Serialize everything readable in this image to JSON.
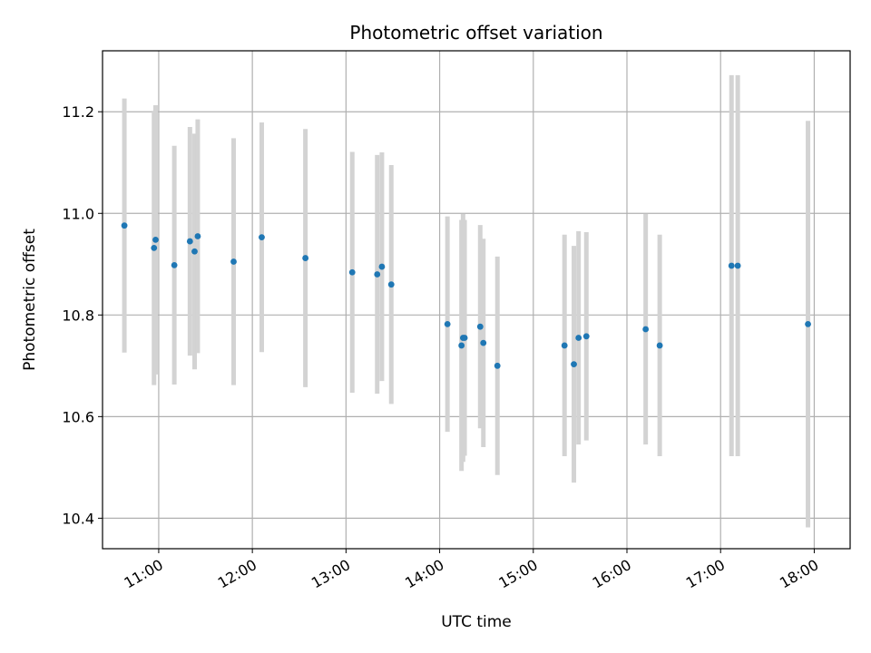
{
  "chart_data": {
    "type": "scatter",
    "title": "Photometric offset variation",
    "xlabel": "UTC time",
    "ylabel": "Photometric offset",
    "grid": true,
    "x_tick_labels": [
      "11:00",
      "12:00",
      "13:00",
      "14:00",
      "15:00",
      "16:00",
      "17:00",
      "18:00"
    ],
    "y_tick_labels": [
      "10.4",
      "10.6",
      "10.8",
      "11.0",
      "11.2"
    ],
    "y_ticks": [
      10.4,
      10.6,
      10.8,
      11.0,
      11.2
    ],
    "xlim": [
      "10:24",
      "18:23"
    ],
    "ylim": [
      10.34,
      11.32
    ],
    "colors": {
      "points": "#1f77b4",
      "error_bars": "#d3d3d3",
      "grid": "#b0b0b0"
    },
    "points": [
      {
        "x": "10:38",
        "y": 10.976,
        "err": 0.25
      },
      {
        "x": "10:57",
        "y": 10.932,
        "err": 0.27
      },
      {
        "x": "10:58",
        "y": 10.948,
        "err": 0.265
      },
      {
        "x": "11:10",
        "y": 10.898,
        "err": 0.235
      },
      {
        "x": "11:20",
        "y": 10.945,
        "err": 0.225
      },
      {
        "x": "11:23",
        "y": 10.925,
        "err": 0.232
      },
      {
        "x": "11:25",
        "y": 10.955,
        "err": 0.23
      },
      {
        "x": "11:48",
        "y": 10.905,
        "err": 0.243
      },
      {
        "x": "12:06",
        "y": 10.953,
        "err": 0.226
      },
      {
        "x": "12:34",
        "y": 10.912,
        "err": 0.254
      },
      {
        "x": "13:04",
        "y": 10.884,
        "err": 0.237
      },
      {
        "x": "13:20",
        "y": 10.88,
        "err": 0.235
      },
      {
        "x": "13:23",
        "y": 10.895,
        "err": 0.225
      },
      {
        "x": "13:29",
        "y": 10.86,
        "err": 0.235
      },
      {
        "x": "14:05",
        "y": 10.782,
        "err": 0.212
      },
      {
        "x": "14:14",
        "y": 10.74,
        "err": 0.247
      },
      {
        "x": "14:15",
        "y": 10.755,
        "err": 0.244
      },
      {
        "x": "14:16",
        "y": 10.755,
        "err": 0.232
      },
      {
        "x": "14:26",
        "y": 10.777,
        "err": 0.2
      },
      {
        "x": "14:28",
        "y": 10.745,
        "err": 0.205
      },
      {
        "x": "14:37",
        "y": 10.7,
        "err": 0.215
      },
      {
        "x": "15:20",
        "y": 10.74,
        "err": 0.218
      },
      {
        "x": "15:26",
        "y": 10.703,
        "err": 0.233
      },
      {
        "x": "15:29",
        "y": 10.755,
        "err": 0.21
      },
      {
        "x": "15:34",
        "y": 10.758,
        "err": 0.205
      },
      {
        "x": "16:12",
        "y": 10.772,
        "err": 0.227
      },
      {
        "x": "16:21",
        "y": 10.74,
        "err": 0.218
      },
      {
        "x": "17:07",
        "y": 10.897,
        "err": 0.375
      },
      {
        "x": "17:11",
        "y": 10.897,
        "err": 0.375
      },
      {
        "x": "17:56",
        "y": 10.782,
        "err": 0.4
      }
    ]
  }
}
